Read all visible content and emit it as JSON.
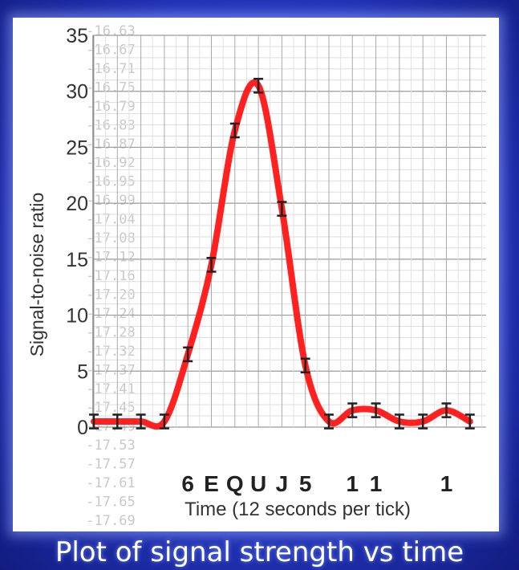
{
  "caption": "Plot of signal strength vs time",
  "chart_data": {
    "type": "line",
    "ylabel": "Signal-to-noise ratio",
    "xlabel": "Time (12 seconds per tick)",
    "ylim": [
      0,
      35
    ],
    "y_ticks": [
      0,
      5,
      10,
      15,
      20,
      25,
      30,
      35
    ],
    "grid": true,
    "line_color": "#ff2020",
    "x": [
      0,
      1,
      2,
      3,
      4,
      5,
      6,
      7,
      8,
      9,
      10,
      11,
      12,
      13,
      14,
      15,
      16
    ],
    "y": [
      0.5,
      0.5,
      0.5,
      0.5,
      6.5,
      14.5,
      26.5,
      30.5,
      19.5,
      5.5,
      0.5,
      1.5,
      1.5,
      0.5,
      0.5,
      1.5,
      0.5
    ],
    "error": [
      0.4,
      0.4,
      0.4,
      0.4,
      0.4,
      0.4,
      0.4,
      0.4,
      0.4,
      0.4,
      0.4,
      0.4,
      0.4,
      0.4,
      0.4,
      0.4,
      0.4
    ],
    "x_markers": [
      {
        "x": 4,
        "label": "6"
      },
      {
        "x": 5,
        "label": "E"
      },
      {
        "x": 6,
        "label": "Q"
      },
      {
        "x": 7,
        "label": "U"
      },
      {
        "x": 8,
        "label": "J"
      },
      {
        "x": 9,
        "label": "5"
      },
      {
        "x": 11,
        "label": "1"
      },
      {
        "x": 12,
        "label": "1"
      },
      {
        "x": 15,
        "label": "1"
      }
    ],
    "background_text": [
      "16.63",
      "16.67",
      "16.71",
      "16.75",
      "16.79",
      "16.83",
      "16.87",
      "16.92",
      "16.95",
      "16.99",
      "17.04",
      "17.08",
      "17.12",
      "17.16",
      "17.20",
      "17.24",
      "17.28",
      "17.32",
      "17.37",
      "17.41",
      "17.45",
      "17.49",
      "17.53",
      "17.57",
      "17.61",
      "17.65",
      "17.69"
    ]
  }
}
